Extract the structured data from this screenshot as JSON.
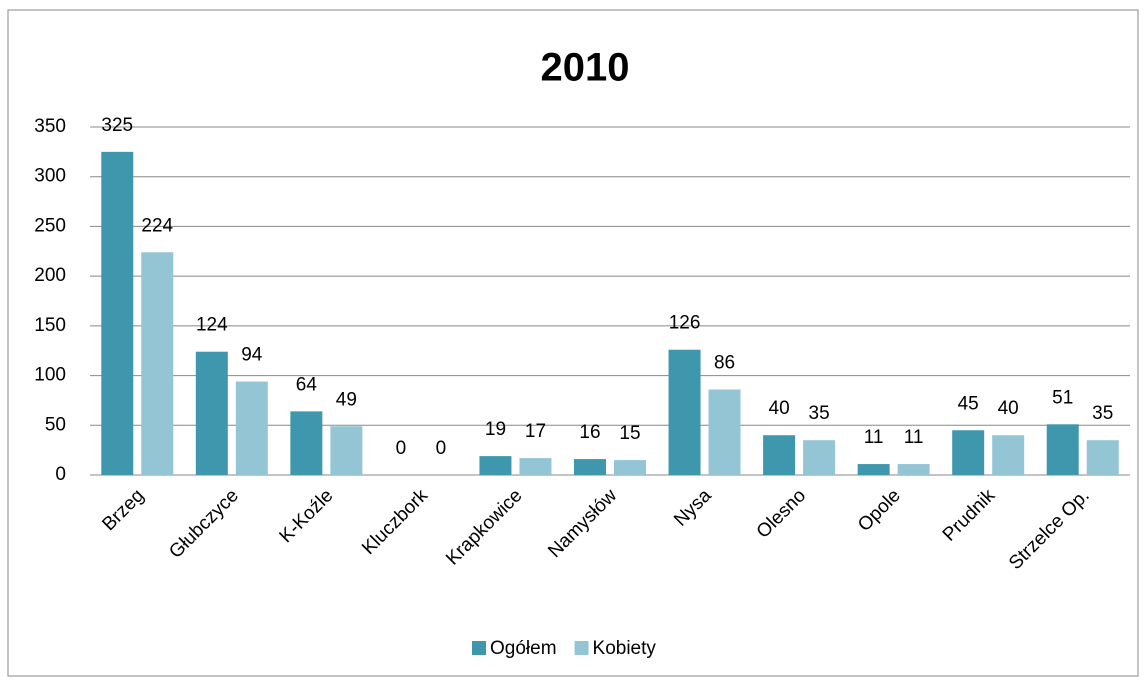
{
  "chart_data": {
    "type": "bar",
    "title": "2010",
    "categories": [
      "Brzeg",
      "Głubczyce",
      "K-Koźle",
      "Kluczbork",
      "Krapkowice",
      "Namysłów",
      "Nysa",
      "Olesno",
      "Opole",
      "Prudnik",
      "Strzelce Op."
    ],
    "series": [
      {
        "name": "Ogółem",
        "color": "#3f97ad",
        "values": [
          325,
          124,
          64,
          0,
          19,
          16,
          126,
          40,
          11,
          45,
          51
        ]
      },
      {
        "name": "Kobiety",
        "color": "#93c5d5",
        "values": [
          224,
          94,
          49,
          0,
          17,
          15,
          86,
          35,
          11,
          40,
          35
        ]
      }
    ],
    "ylim": [
      0,
      350
    ],
    "yticks": [
      0,
      50,
      100,
      150,
      200,
      250,
      300,
      350
    ],
    "grid": true,
    "legend": "bottom"
  }
}
